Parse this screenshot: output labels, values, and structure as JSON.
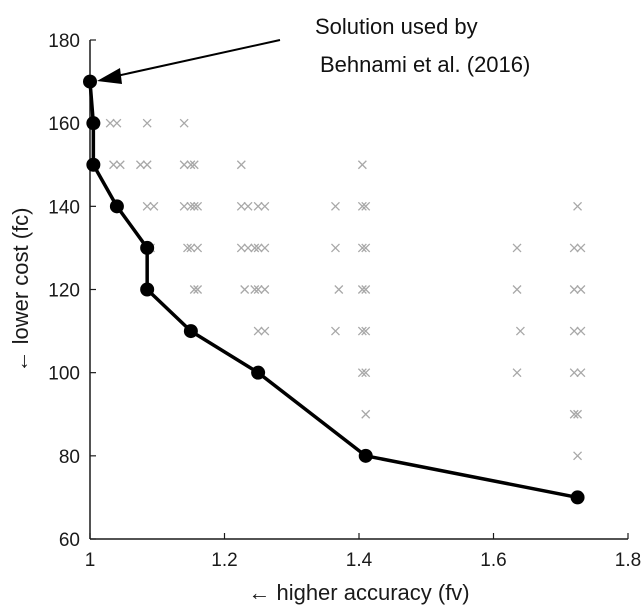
{
  "chart_data": {
    "type": "scatter",
    "xlabel": "← higher accuracy (fv)",
    "ylabel": "← lower cost (fc)",
    "xlim": [
      1.0,
      1.8
    ],
    "ylim": [
      60,
      180
    ],
    "xticks": [
      "1",
      "1.2",
      "1.4",
      "1.6",
      "1.8"
    ],
    "xtick_values": [
      1.0,
      1.2,
      1.4,
      1.6,
      1.8
    ],
    "yticks": [
      "60",
      "80",
      "100",
      "120",
      "140",
      "160",
      "180"
    ],
    "ytick_values": [
      60,
      80,
      100,
      120,
      140,
      160,
      180
    ],
    "grid": false,
    "series": [
      {
        "marker": "x",
        "color": "#a8a8a8",
        "points": [
          [
            1.03,
            160
          ],
          [
            1.04,
            160
          ],
          [
            1.085,
            160
          ],
          [
            1.14,
            160
          ],
          [
            1.035,
            150
          ],
          [
            1.045,
            150
          ],
          [
            1.075,
            150
          ],
          [
            1.085,
            150
          ],
          [
            1.14,
            150
          ],
          [
            1.15,
            150
          ],
          [
            1.155,
            150
          ],
          [
            1.225,
            150
          ],
          [
            1.405,
            150
          ],
          [
            1.085,
            140
          ],
          [
            1.095,
            140
          ],
          [
            1.14,
            140
          ],
          [
            1.15,
            140
          ],
          [
            1.155,
            140
          ],
          [
            1.16,
            140
          ],
          [
            1.225,
            140
          ],
          [
            1.235,
            140
          ],
          [
            1.25,
            140
          ],
          [
            1.26,
            140
          ],
          [
            1.365,
            140
          ],
          [
            1.405,
            140
          ],
          [
            1.41,
            140
          ],
          [
            1.725,
            140
          ],
          [
            1.09,
            130
          ],
          [
            1.145,
            130
          ],
          [
            1.15,
            130
          ],
          [
            1.16,
            130
          ],
          [
            1.225,
            130
          ],
          [
            1.235,
            130
          ],
          [
            1.245,
            130
          ],
          [
            1.25,
            130
          ],
          [
            1.26,
            130
          ],
          [
            1.365,
            130
          ],
          [
            1.405,
            130
          ],
          [
            1.41,
            130
          ],
          [
            1.635,
            130
          ],
          [
            1.72,
            130
          ],
          [
            1.73,
            130
          ],
          [
            1.155,
            120
          ],
          [
            1.16,
            120
          ],
          [
            1.23,
            120
          ],
          [
            1.245,
            120
          ],
          [
            1.25,
            120
          ],
          [
            1.26,
            120
          ],
          [
            1.37,
            120
          ],
          [
            1.405,
            120
          ],
          [
            1.41,
            120
          ],
          [
            1.635,
            120
          ],
          [
            1.72,
            120
          ],
          [
            1.73,
            120
          ],
          [
            1.25,
            110
          ],
          [
            1.26,
            110
          ],
          [
            1.365,
            110
          ],
          [
            1.405,
            110
          ],
          [
            1.41,
            110
          ],
          [
            1.64,
            110
          ],
          [
            1.72,
            110
          ],
          [
            1.73,
            110
          ],
          [
            1.405,
            100
          ],
          [
            1.41,
            100
          ],
          [
            1.635,
            100
          ],
          [
            1.72,
            100
          ],
          [
            1.73,
            100
          ],
          [
            1.41,
            90
          ],
          [
            1.72,
            90
          ],
          [
            1.725,
            90
          ],
          [
            1.725,
            80
          ]
        ]
      },
      {
        "marker": "o",
        "line": true,
        "color": "#000000",
        "points": [
          [
            1.0,
            170
          ],
          [
            1.005,
            160
          ],
          [
            1.005,
            150
          ],
          [
            1.04,
            140
          ],
          [
            1.085,
            130
          ],
          [
            1.085,
            120
          ],
          [
            1.15,
            110
          ],
          [
            1.25,
            100
          ],
          [
            1.41,
            80
          ],
          [
            1.725,
            70
          ]
        ]
      }
    ],
    "annotations": [
      {
        "text_lines": [
          "Solution used by",
          "Behnami et al. (2016)"
        ],
        "arrow_to": [
          1.0,
          170
        ]
      }
    ]
  }
}
